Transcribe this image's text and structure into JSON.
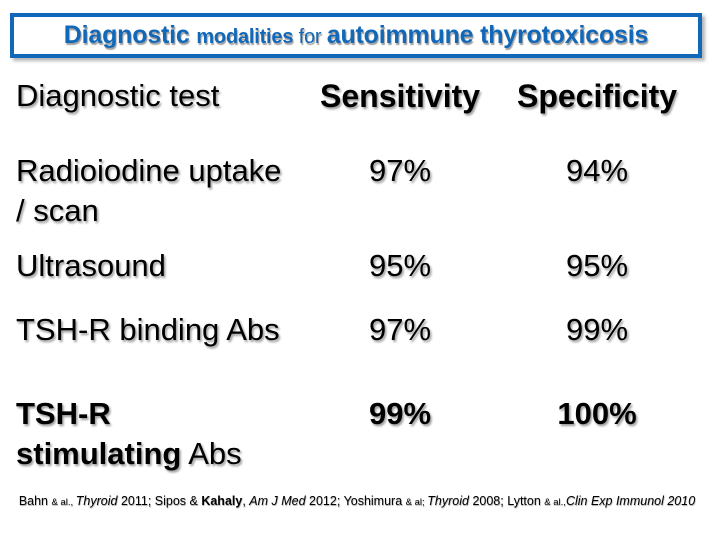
{
  "slide_title": {
    "full_text": "Diagnostic modalities for autoimmune thyrotoxicosis",
    "color": "#1268b8",
    "segments": [
      {
        "text": "Diagnostic ",
        "style": "bold-lg"
      },
      {
        "text": "modalities ",
        "style": "bold-md"
      },
      {
        "text": "for ",
        "style": "reg-md"
      },
      {
        "text": "autoimmune thyrotoxicosis",
        "style": "bold-lg"
      }
    ]
  },
  "table": {
    "header": {
      "test": "Diagnostic test",
      "sensitivity": "Sensitivity",
      "specificity": "Specificity"
    },
    "rows": [
      {
        "name_line1": "Radioiodine uptake",
        "name_line2": "/ scan",
        "sensitivity": "97%",
        "specificity": "94%"
      },
      {
        "name_line1": "Ultrasound",
        "name_line2": "",
        "sensitivity": "95%",
        "specificity": "95%"
      },
      {
        "name_line1": "TSH-R binding Abs",
        "name_line2": "",
        "sensitivity": "97%",
        "specificity": "99%"
      },
      {
        "name_line1": "TSH-R",
        "name_line2_segments": [
          {
            "text": "stimulating",
            "style": "bold"
          },
          {
            "text": " Abs",
            "style": "plain"
          }
        ],
        "sensitivity": "99%",
        "specificity": "100%"
      }
    ]
  },
  "citation": {
    "full_text": "Bahn & al., Thyroid 2011; Sipos & Kahaly, Am J Med 2012; Yoshimura & al; Thyroid 2008; Lytton & al.,Clin Exp Immunol 2010",
    "segments": [
      {
        "text": "Bahn ",
        "style": "plain"
      },
      {
        "text": "& al., ",
        "style": "small"
      },
      {
        "text": "Thyroid ",
        "style": "italic"
      },
      {
        "text": "2011; Sipos & ",
        "style": "plain"
      },
      {
        "text": "Kahaly",
        "style": "bold"
      },
      {
        "text": ", ",
        "style": "plain"
      },
      {
        "text": "Am J Med ",
        "style": "italic"
      },
      {
        "text": "2012; ",
        "style": "plain"
      },
      {
        "text": "Yoshimura ",
        "style": "plain"
      },
      {
        "text": "& al; ",
        "style": "small"
      },
      {
        "text": "Thyroid ",
        "style": "italic"
      },
      {
        "text": "2008; ",
        "style": "plain"
      },
      {
        "text": "Lytton ",
        "style": "plain"
      },
      {
        "text": "& al.,",
        "style": "small"
      },
      {
        "text": "Clin Exp Immunol 2010",
        "style": "italic"
      }
    ]
  },
  "chart_data": {
    "type": "table",
    "title": "Diagnostic modalities for autoimmune thyrotoxicosis",
    "columns": [
      "Diagnostic test",
      "Sensitivity",
      "Specificity"
    ],
    "rows": [
      [
        "Radioiodine uptake / scan",
        "97%",
        "94%"
      ],
      [
        "Ultrasound",
        "95%",
        "95%"
      ],
      [
        "TSH-R binding Abs",
        "97%",
        "99%"
      ],
      [
        "TSH-R stimulating Abs",
        "99%",
        "100%"
      ]
    ]
  }
}
